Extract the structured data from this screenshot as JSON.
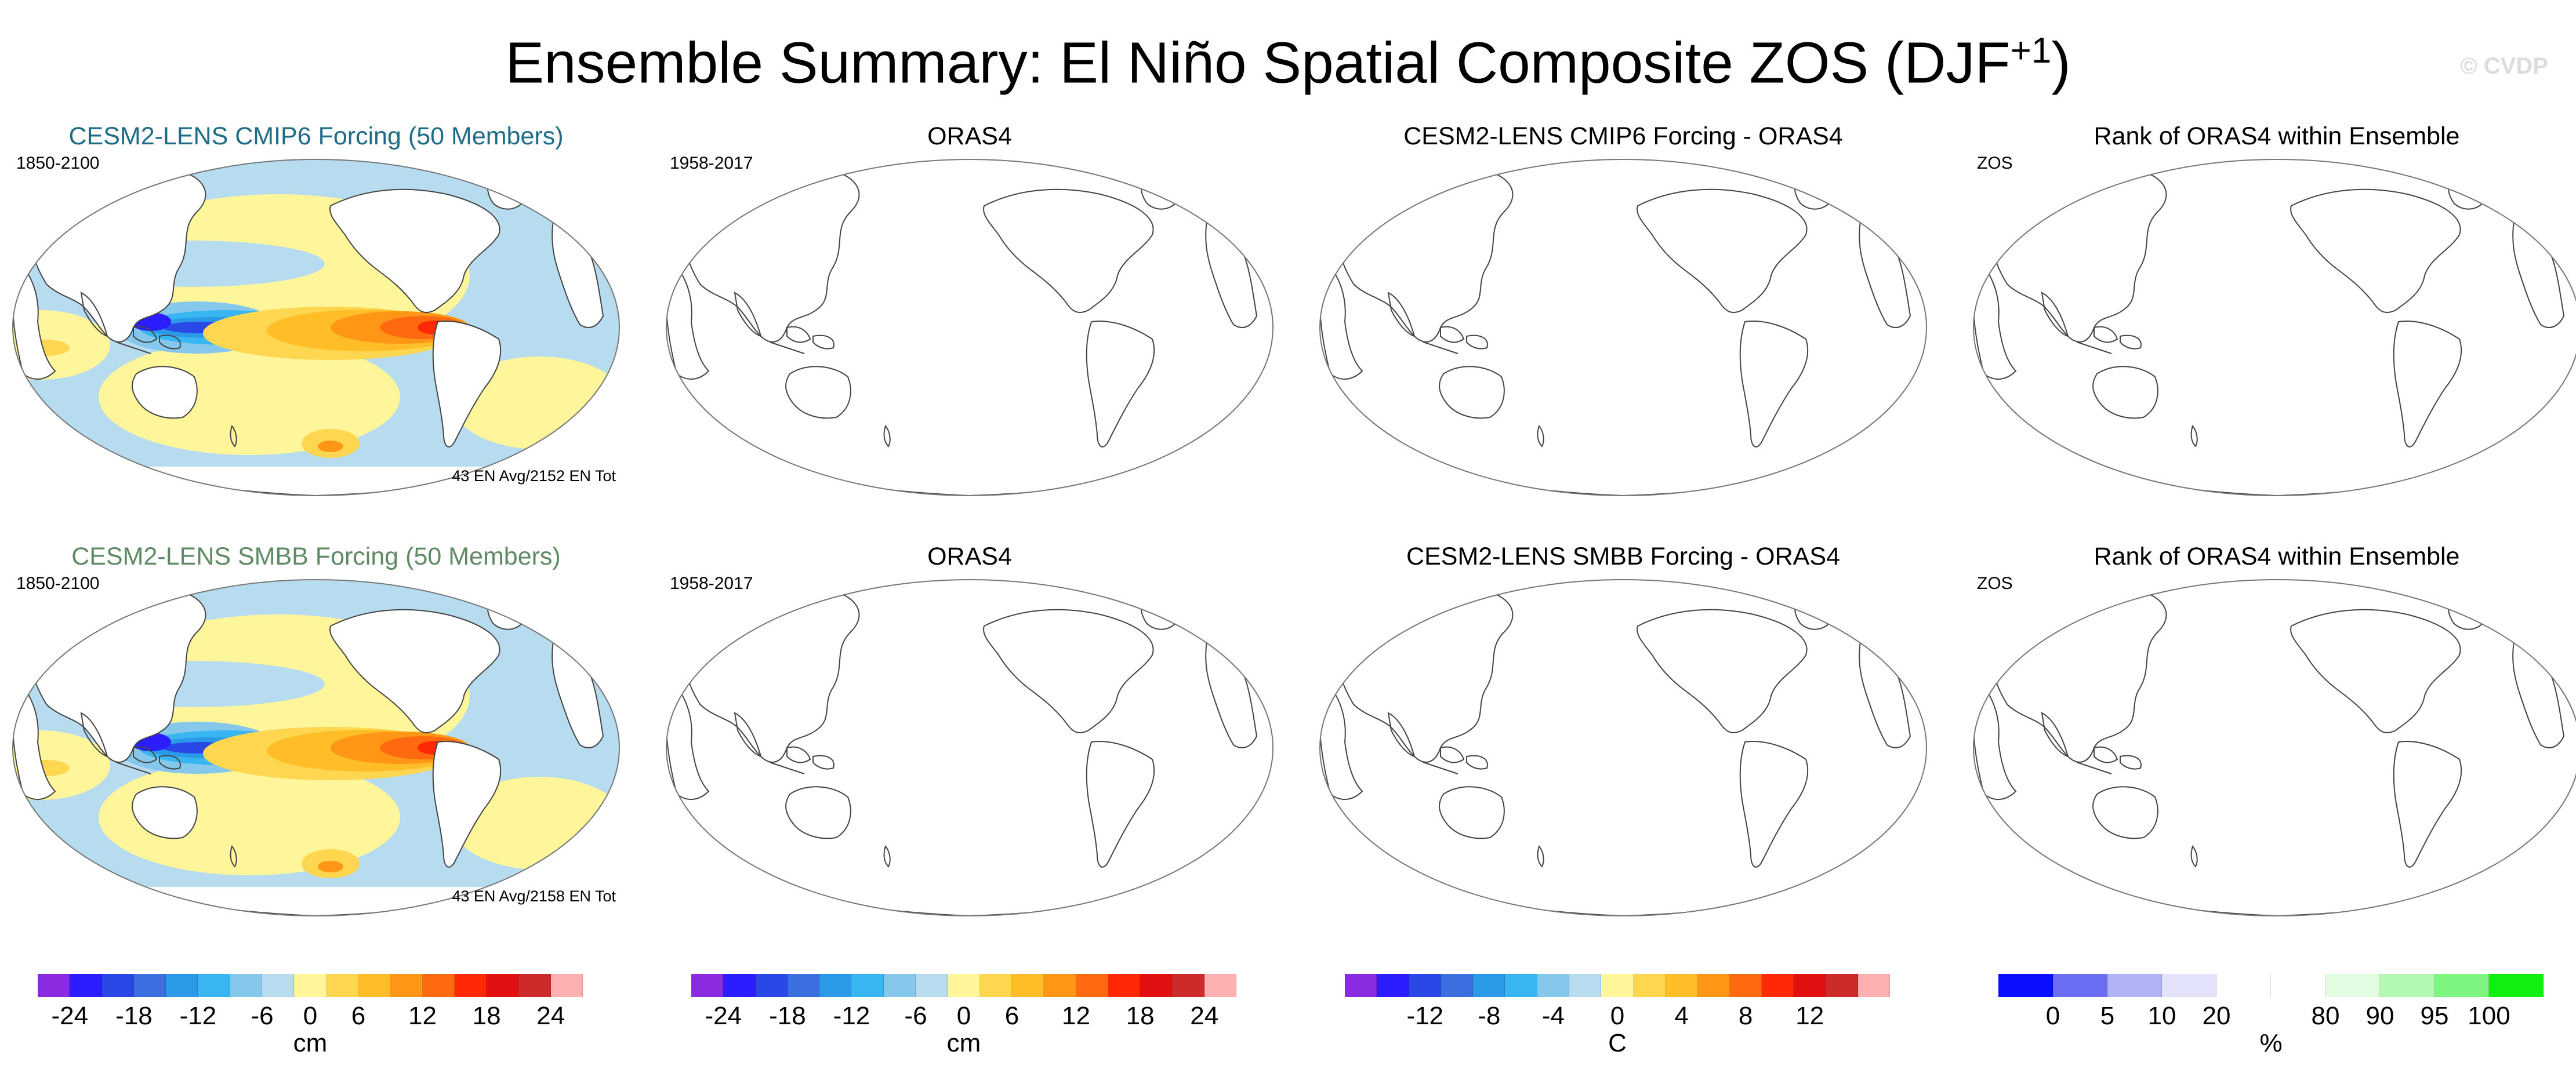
{
  "title": "Ensemble Summary: El Niño Spatial Composite ZOS (DJF",
  "title_sup": "+1",
  "title_close": ")",
  "watermark": "© CVDP",
  "panels": [
    {
      "title": "CESM2-LENS CMIP6 Forcing (50 Members)",
      "left": "1850-2100",
      "right": "43 EN Avg/2152 EN Tot",
      "style": "blue",
      "filled": true
    },
    {
      "title": "ORAS4",
      "left": "1958-2017",
      "right": "",
      "style": "",
      "filled": false
    },
    {
      "title": "CESM2-LENS CMIP6 Forcing - ORAS4",
      "left": "",
      "right": "",
      "style": "",
      "filled": false
    },
    {
      "title": "Rank of ORAS4 within Ensemble",
      "left": "ZOS",
      "right": "",
      "style": "",
      "filled": false
    },
    {
      "title": "CESM2-LENS SMBB Forcing (50 Members)",
      "left": "1850-2100",
      "right": "43 EN Avg/2158 EN Tot",
      "style": "green",
      "filled": true
    },
    {
      "title": "ORAS4",
      "left": "1958-2017",
      "right": "",
      "style": "",
      "filled": false
    },
    {
      "title": "CESM2-LENS SMBB Forcing - ORAS4",
      "left": "",
      "right": "",
      "style": "",
      "filled": false
    },
    {
      "title": "Rank of ORAS4 within Ensemble",
      "left": "ZOS",
      "right": "",
      "style": "",
      "filled": false
    }
  ],
  "colorbars": [
    {
      "unit": "cm",
      "labels": [
        "-24",
        "-18",
        "-12",
        "-6",
        "0",
        "6",
        "12",
        "18",
        "24"
      ],
      "colors": [
        "#8a2be2",
        "#2b1dff",
        "#2a48e6",
        "#3b6fe0",
        "#2a9ae8",
        "#38b6f2",
        "#86c8ec",
        "#b7dcef",
        "#fff59a",
        "#ffd64f",
        "#ffbd27",
        "#ff9615",
        "#ff6a10",
        "#ff2a05",
        "#e21010",
        "#cd2a2a",
        "#ffb1b1"
      ]
    },
    {
      "unit": "cm",
      "labels": [
        "-24",
        "-18",
        "-12",
        "-6",
        "0",
        "6",
        "12",
        "18",
        "24"
      ],
      "colors": [
        "#8a2be2",
        "#2b1dff",
        "#2a48e6",
        "#3b6fe0",
        "#2a9ae8",
        "#38b6f2",
        "#86c8ec",
        "#b7dcef",
        "#fff59a",
        "#ffd64f",
        "#ffbd27",
        "#ff9615",
        "#ff6a10",
        "#ff2a05",
        "#e21010",
        "#cd2a2a",
        "#ffb1b1"
      ]
    },
    {
      "unit": "C",
      "labels": [
        "-12",
        "-8",
        "-4",
        "0",
        "4",
        "8",
        "12"
      ],
      "colors": [
        "#8a2be2",
        "#2b1dff",
        "#2a48e6",
        "#3b6fe0",
        "#2a9ae8",
        "#38b6f2",
        "#86c8ec",
        "#b7dcef",
        "#fff59a",
        "#ffd64f",
        "#ffbd27",
        "#ff9615",
        "#ff6a10",
        "#ff2a05",
        "#e21010",
        "#cd2a2a",
        "#ffb1b1"
      ]
    },
    {
      "unit": "%",
      "labels": [
        "0",
        "5",
        "10",
        "20",
        "80",
        "90",
        "95",
        "100"
      ],
      "colors": [
        "#0a10ff",
        "#6b6ef2",
        "#b0b3f5",
        "#e2e3fb",
        "#ffffff",
        "#ffffff",
        "#e2fce2",
        "#b3f8b3",
        "#7ef57e",
        "#10f010"
      ]
    }
  ],
  "chart_data": [
    {
      "type": "heatmap",
      "title": "CESM2-LENS CMIP6 Forcing (50 Members)",
      "period": "1850-2100",
      "note": "43 EN Avg/2152 EN Tot",
      "unit": "cm",
      "levels": [
        -24,
        -21,
        -18,
        -15,
        -12,
        -9,
        -6,
        -3,
        0,
        3,
        6,
        9,
        12,
        15,
        18,
        21,
        24
      ],
      "patterns": [
        {
          "region": "eastern equatorial Pacific",
          "value": "positive, peak 18 to 24"
        },
        {
          "region": "western Pacific / Maritime Continent",
          "value": "negative, -12 to -21"
        },
        {
          "region": "subtropical Pacific and Indian Ocean",
          "value": "0 to 3"
        },
        {
          "region": "elsewhere",
          "value": "-3 to 0"
        }
      ]
    },
    {
      "type": "heatmap",
      "title": "ORAS4",
      "period": "1958-2017",
      "note": "",
      "unit": "cm",
      "values": "blank"
    },
    {
      "type": "heatmap",
      "title": "CESM2-LENS CMIP6 Forcing - ORAS4",
      "unit": "C",
      "values": "blank"
    },
    {
      "type": "heatmap",
      "title": "Rank of ORAS4 within Ensemble",
      "unit": "%",
      "values": "blank"
    },
    {
      "type": "heatmap",
      "title": "CESM2-LENS SMBB Forcing (50 Members)",
      "period": "1850-2100",
      "note": "43 EN Avg/2158 EN Tot",
      "unit": "cm",
      "levels": [
        -24,
        -21,
        -18,
        -15,
        -12,
        -9,
        -6,
        -3,
        0,
        3,
        6,
        9,
        12,
        15,
        18,
        21,
        24
      ],
      "patterns": [
        {
          "region": "eastern equatorial Pacific",
          "value": "positive, peak 18 to 24"
        },
        {
          "region": "western Pacific / Maritime Continent",
          "value": "negative, -12 to -21"
        },
        {
          "region": "subtropical Pacific and Indian Ocean",
          "value": "0 to 3"
        },
        {
          "region": "elsewhere",
          "value": "-3 to 0"
        }
      ]
    },
    {
      "type": "heatmap",
      "title": "ORAS4",
      "period": "1958-2017",
      "unit": "cm",
      "values": "blank"
    },
    {
      "type": "heatmap",
      "title": "CESM2-LENS SMBB Forcing - ORAS4",
      "unit": "C",
      "values": "blank"
    },
    {
      "type": "heatmap",
      "title": "Rank of ORAS4 within Ensemble",
      "unit": "%",
      "values": "blank"
    }
  ]
}
